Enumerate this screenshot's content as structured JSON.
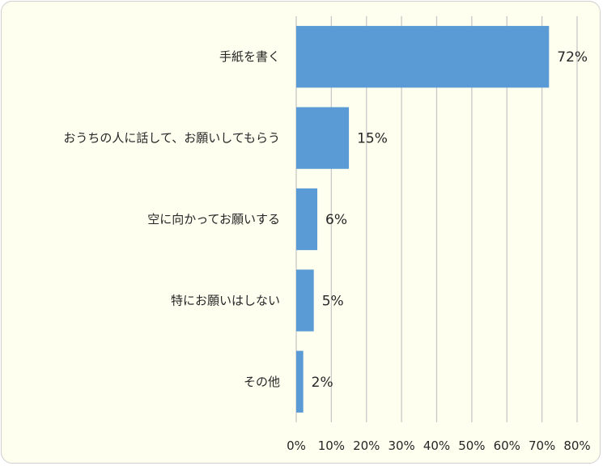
{
  "chart_data": {
    "type": "bar",
    "orientation": "horizontal",
    "categories": [
      "手紙を書く",
      "おうちの人に話して、お願いしてもらう",
      "空に向かってお願いする",
      "特にお願いはしない",
      "その他"
    ],
    "values": [
      72,
      15,
      6,
      5,
      2
    ],
    "value_labels": [
      "72%",
      "15%",
      "6%",
      "5%",
      "2%"
    ],
    "xlim": [
      0,
      80
    ],
    "x_ticks": [
      0,
      10,
      20,
      30,
      40,
      50,
      60,
      70,
      80
    ],
    "x_tick_labels": [
      "0%",
      "10%",
      "20%",
      "30%",
      "40%",
      "50%",
      "60%",
      "70%",
      "80%"
    ],
    "title": "",
    "xlabel": "",
    "ylabel": "",
    "grid": true,
    "legend": "none",
    "bar_color": "#5b9bd5",
    "background_color": "#fffff0"
  }
}
